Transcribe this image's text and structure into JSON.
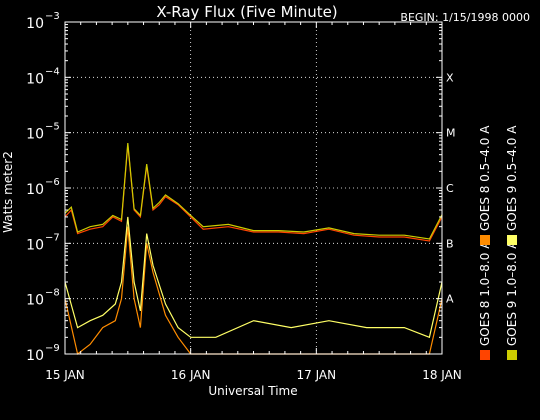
{
  "chart_data": {
    "type": "line",
    "title": "X-Ray Flux (Five Minute)",
    "begin_label": "BEGIN: 1/15/1998 0000",
    "ylabel": "Watts meter2",
    "xlabel": "Universal Time",
    "y_scale": "log",
    "ylim": [
      1e-09,
      0.001
    ],
    "y_ticks": [
      {
        "value": 0.001,
        "base": "10",
        "exp": "−3"
      },
      {
        "value": 0.0001,
        "base": "10",
        "exp": "−4"
      },
      {
        "value": 1e-05,
        "base": "10",
        "exp": "−5"
      },
      {
        "value": 1e-06,
        "base": "10",
        "exp": "−6"
      },
      {
        "value": 1e-07,
        "base": "10",
        "exp": "−7"
      },
      {
        "value": 1e-08,
        "base": "10",
        "exp": "−8"
      },
      {
        "value": 1e-09,
        "base": "10",
        "exp": "−9"
      }
    ],
    "x_ticks": [
      "15 JAN",
      "16 JAN",
      "17 JAN",
      "18 JAN"
    ],
    "xlim_days": [
      0,
      3
    ],
    "flare_classes": [
      {
        "label": "X",
        "value": 0.0001
      },
      {
        "label": "M",
        "value": 1e-05
      },
      {
        "label": "C",
        "value": 1e-06
      },
      {
        "label": "B",
        "value": 1e-07
      },
      {
        "label": "A",
        "value": 1e-08
      }
    ],
    "grid": true,
    "legend_position": "right",
    "series": [
      {
        "name": "GOES 8 1.0–8.0 A",
        "color": "#ff4400",
        "x": [
          0,
          0.05,
          0.1,
          0.2,
          0.3,
          0.38,
          0.45,
          0.5,
          0.55,
          0.6,
          0.65,
          0.7,
          0.75,
          0.8,
          0.9,
          1.0,
          1.1,
          1.3,
          1.5,
          1.7,
          1.9,
          2.1,
          2.3,
          2.5,
          2.7,
          2.9,
          3.0
        ],
        "y": [
          3e-07,
          4e-07,
          1.5e-07,
          1.8e-07,
          2e-07,
          3e-07,
          2.5e-07,
          6e-06,
          4e-07,
          3e-07,
          2.5e-06,
          4e-07,
          5e-07,
          7e-07,
          5e-07,
          3e-07,
          1.8e-07,
          2e-07,
          1.6e-07,
          1.6e-07,
          1.5e-07,
          1.8e-07,
          1.4e-07,
          1.3e-07,
          1.3e-07,
          1.1e-07,
          3e-07
        ]
      },
      {
        "name": "GOES 8 0.5–4.0 A",
        "color": "#ff8c00",
        "x": [
          0,
          0.1,
          0.2,
          0.3,
          0.4,
          0.45,
          0.5,
          0.55,
          0.6,
          0.65,
          0.7,
          0.8,
          0.9,
          1.0,
          1.2,
          1.5,
          1.8,
          2.1,
          2.4,
          2.7,
          2.9,
          3.0
        ],
        "y": [
          1e-08,
          1e-09,
          1.5e-09,
          3e-09,
          4e-09,
          1e-08,
          2e-07,
          1e-08,
          3e-09,
          1e-07,
          3e-08,
          5e-09,
          2e-09,
          1e-09,
          1e-09,
          1e-09,
          1e-09,
          1e-09,
          1e-09,
          1e-09,
          1e-09,
          1e-08
        ]
      },
      {
        "name": "GOES 9 1.0–8.0 A",
        "color": "#cccc00",
        "x": [
          0,
          0.05,
          0.1,
          0.2,
          0.3,
          0.38,
          0.45,
          0.5,
          0.55,
          0.6,
          0.65,
          0.7,
          0.75,
          0.8,
          0.9,
          1.0,
          1.1,
          1.3,
          1.5,
          1.7,
          1.9,
          2.1,
          2.3,
          2.5,
          2.7,
          2.9,
          3.0
        ],
        "y": [
          3.5e-07,
          4.5e-07,
          1.6e-07,
          2e-07,
          2.2e-07,
          3.2e-07,
          2.7e-07,
          6.5e-06,
          4.2e-07,
          3.2e-07,
          2.7e-06,
          4.3e-07,
          5.5e-07,
          7.5e-07,
          5.2e-07,
          3.2e-07,
          2e-07,
          2.2e-07,
          1.7e-07,
          1.7e-07,
          1.6e-07,
          1.9e-07,
          1.5e-07,
          1.4e-07,
          1.4e-07,
          1.2e-07,
          3.3e-07
        ]
      },
      {
        "name": "GOES 9 0.5–4.0 A",
        "color": "#ffff66",
        "x": [
          0,
          0.1,
          0.2,
          0.3,
          0.4,
          0.45,
          0.5,
          0.55,
          0.6,
          0.65,
          0.7,
          0.8,
          0.9,
          1.0,
          1.2,
          1.5,
          1.8,
          2.1,
          2.4,
          2.7,
          2.9,
          3.0
        ],
        "y": [
          2e-08,
          3e-09,
          4e-09,
          5e-09,
          8e-09,
          2e-08,
          3e-07,
          2e-08,
          6e-09,
          1.5e-07,
          4e-08,
          8e-09,
          3e-09,
          2e-09,
          2e-09,
          4e-09,
          3e-09,
          4e-09,
          3e-09,
          3e-09,
          2e-09,
          2e-08
        ]
      }
    ]
  }
}
